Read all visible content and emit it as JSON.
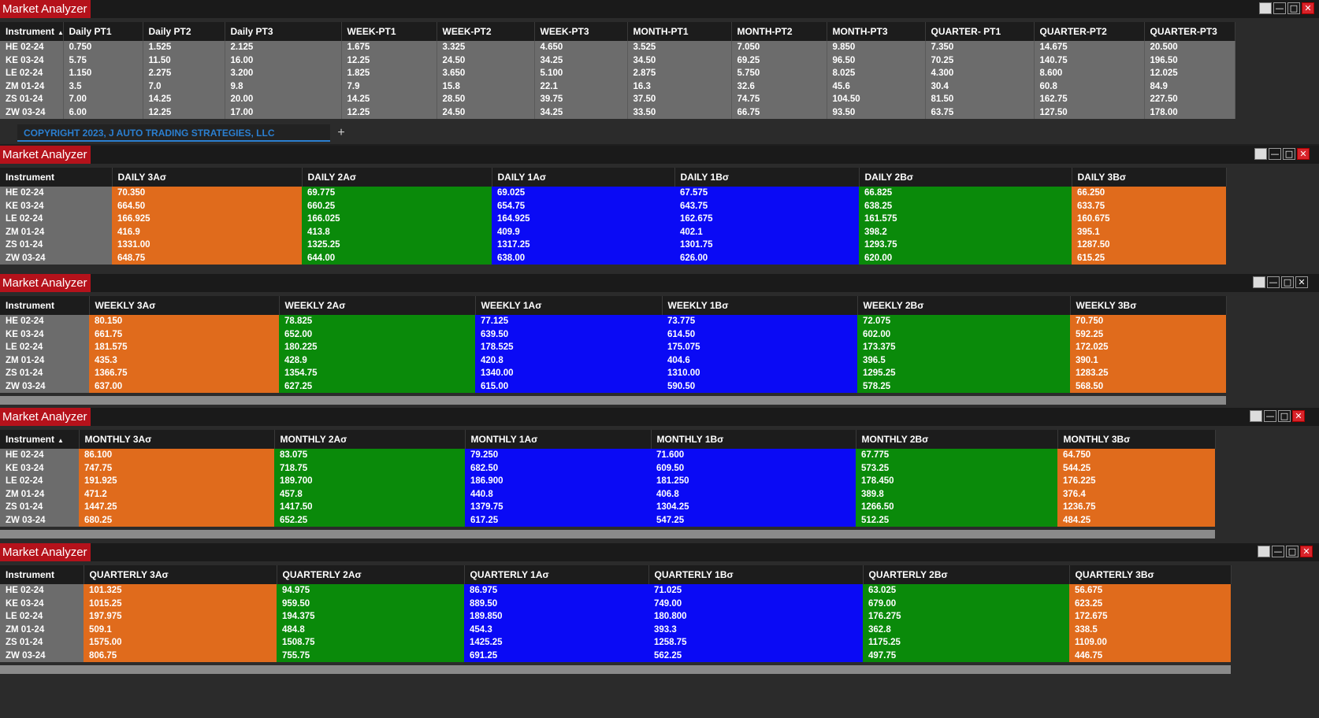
{
  "window_title": "Market Analyzer",
  "instruments": [
    "HE 02-24",
    "KE 03-24",
    "LE 02-24",
    "ZM 01-24",
    "ZS 01-24",
    "ZW 03-24"
  ],
  "colors": {
    "orange": "#e06b1c",
    "green": "#0a8a0a",
    "blue": "#0a0af5",
    "title_red": "#b5121b"
  },
  "icons": {
    "restore": "window-restore-icon",
    "minimize": "minimize-icon",
    "maximize": "maximize-icon",
    "close": "close-icon",
    "sort": "sort-asc-icon",
    "add": "plus-icon"
  },
  "top": {
    "headers": [
      "Instrument",
      "Daily PT1",
      "Daily PT2",
      "Daily PT3",
      "WEEK-PT1",
      "WEEK-PT2",
      "WEEK-PT3",
      "MONTH-PT1",
      "MONTH-PT2",
      "MONTH-PT3",
      "QUARTER- PT1",
      "QUARTER-PT2",
      "QUARTER-PT3"
    ],
    "rows": [
      [
        "HE 02-24",
        "0.750",
        "1.525",
        "2.125",
        "1.675",
        "3.325",
        "4.650",
        "3.525",
        "7.050",
        "9.850",
        "7.350",
        "14.675",
        "20.500"
      ],
      [
        "KE 03-24",
        "5.75",
        "11.50",
        "16.00",
        "12.25",
        "24.50",
        "34.25",
        "34.50",
        "69.25",
        "96.50",
        "70.25",
        "140.75",
        "196.50"
      ],
      [
        "LE 02-24",
        "1.150",
        "2.275",
        "3.200",
        "1.825",
        "3.650",
        "5.100",
        "2.875",
        "5.750",
        "8.025",
        "4.300",
        "8.600",
        "12.025"
      ],
      [
        "ZM 01-24",
        "3.5",
        "7.0",
        "9.8",
        "7.9",
        "15.8",
        "22.1",
        "16.3",
        "32.6",
        "45.6",
        "30.4",
        "60.8",
        "84.9"
      ],
      [
        "ZS 01-24",
        "7.00",
        "14.25",
        "20.00",
        "14.25",
        "28.50",
        "39.75",
        "37.50",
        "74.75",
        "104.50",
        "81.50",
        "162.75",
        "227.50"
      ],
      [
        "ZW 03-24",
        "6.00",
        "12.25",
        "17.00",
        "12.25",
        "24.50",
        "34.25",
        "33.50",
        "66.75",
        "93.50",
        "63.75",
        "127.50",
        "178.00"
      ]
    ],
    "tab_label": "COPYRIGHT 2023, J AUTO TRADING STRATEGIES, LLC",
    "tab_add": "+"
  },
  "daily": {
    "headers": [
      "Instrument",
      "DAILY 3Aσ",
      "DAILY 2Aσ",
      "DAILY 1Aσ",
      "DAILY 1Bσ",
      "DAILY 2Bσ",
      "DAILY 3Bσ"
    ],
    "rows": [
      [
        "HE 02-24",
        "70.350",
        "69.775",
        "69.025",
        "67.575",
        "66.825",
        "66.250"
      ],
      [
        "KE 03-24",
        "664.50",
        "660.25",
        "654.75",
        "643.75",
        "638.25",
        "633.75"
      ],
      [
        "LE 02-24",
        "166.925",
        "166.025",
        "164.925",
        "162.675",
        "161.575",
        "160.675"
      ],
      [
        "ZM 01-24",
        "416.9",
        "413.8",
        "409.9",
        "402.1",
        "398.2",
        "395.1"
      ],
      [
        "ZS 01-24",
        "1331.00",
        "1325.25",
        "1317.25",
        "1301.75",
        "1293.75",
        "1287.50"
      ],
      [
        "ZW 03-24",
        "648.75",
        "644.00",
        "638.00",
        "626.00",
        "620.00",
        "615.25"
      ]
    ]
  },
  "weekly": {
    "headers": [
      "Instrument",
      "WEEKLY 3Aσ",
      "WEEKLY 2Aσ",
      "WEEKLY 1Aσ",
      "WEEKLY 1Bσ",
      "WEEKLY 2Bσ",
      "WEEKLY 3Bσ"
    ],
    "rows": [
      [
        "HE 02-24",
        "80.150",
        "78.825",
        "77.125",
        "73.775",
        "72.075",
        "70.750"
      ],
      [
        "KE 03-24",
        "661.75",
        "652.00",
        "639.50",
        "614.50",
        "602.00",
        "592.25"
      ],
      [
        "LE 02-24",
        "181.575",
        "180.225",
        "178.525",
        "175.075",
        "173.375",
        "172.025"
      ],
      [
        "ZM 01-24",
        "435.3",
        "428.9",
        "420.8",
        "404.6",
        "396.5",
        "390.1"
      ],
      [
        "ZS 01-24",
        "1366.75",
        "1354.75",
        "1340.00",
        "1310.00",
        "1295.25",
        "1283.25"
      ],
      [
        "ZW 03-24",
        "637.00",
        "627.25",
        "615.00",
        "590.50",
        "578.25",
        "568.50"
      ]
    ]
  },
  "monthly": {
    "headers": [
      "Instrument",
      "MONTHLY 3Aσ",
      "MONTHLY 2Aσ",
      "MONTHLY 1Aσ",
      "MONTHLY 1Bσ",
      "MONTHLY 2Bσ",
      "MONTHLY 3Bσ"
    ],
    "rows": [
      [
        "HE 02-24",
        "86.100",
        "83.075",
        "79.250",
        "71.600",
        "67.775",
        "64.750"
      ],
      [
        "KE 03-24",
        "747.75",
        "718.75",
        "682.50",
        "609.50",
        "573.25",
        "544.25"
      ],
      [
        "LE 02-24",
        "191.925",
        "189.700",
        "186.900",
        "181.250",
        "178.450",
        "176.225"
      ],
      [
        "ZM 01-24",
        "471.2",
        "457.8",
        "440.8",
        "406.8",
        "389.8",
        "376.4"
      ],
      [
        "ZS 01-24",
        "1447.25",
        "1417.50",
        "1379.75",
        "1304.25",
        "1266.50",
        "1236.75"
      ],
      [
        "ZW 03-24",
        "680.25",
        "652.25",
        "617.25",
        "547.25",
        "512.25",
        "484.25"
      ]
    ]
  },
  "quarterly": {
    "headers": [
      "Instrument",
      "QUARTERLY 3Aσ",
      "QUARTERLY 2Aσ",
      "QUARTERLY 1Aσ",
      "QUARTERLY 1Bσ",
      "QUARTERLY 2Bσ",
      "QUARTERLY 3Bσ"
    ],
    "rows": [
      [
        "HE 02-24",
        "101.325",
        "94.975",
        "86.975",
        "71.025",
        "63.025",
        "56.675"
      ],
      [
        "KE 03-24",
        "1015.25",
        "959.50",
        "889.50",
        "749.00",
        "679.00",
        "623.25"
      ],
      [
        "LE 02-24",
        "197.975",
        "194.375",
        "189.850",
        "180.800",
        "176.275",
        "172.675"
      ],
      [
        "ZM 01-24",
        "509.1",
        "484.8",
        "454.3",
        "393.3",
        "362.8",
        "338.5"
      ],
      [
        "ZS 01-24",
        "1575.00",
        "1508.75",
        "1425.25",
        "1258.75",
        "1175.25",
        "1109.00"
      ],
      [
        "ZW 03-24",
        "806.75",
        "755.75",
        "691.25",
        "562.25",
        "497.75",
        "446.75"
      ]
    ]
  }
}
